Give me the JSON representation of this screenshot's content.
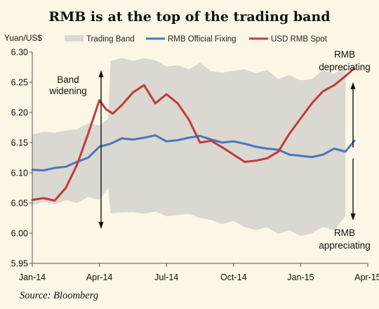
{
  "chart_data": {
    "type": "line",
    "title": "RMB is at the top of the trading band",
    "ylabel": "Yuan/US$",
    "ylim": [
      5.95,
      6.3
    ],
    "yticks": [
      "6.30",
      "6.25",
      "6.20",
      "6.15",
      "6.10",
      "6.05",
      "6.00",
      "5.95"
    ],
    "xticks": [
      "Jan-14",
      "Apr-14",
      "Jul-14",
      "Oct-14",
      "Jan-15",
      "Apr-15"
    ],
    "xlim": [
      0,
      15
    ],
    "legend": [
      "Trading Band",
      "RMB Official Fixing",
      "USD RMB Spot"
    ],
    "legend_position": "top",
    "grid": false,
    "source": "Source: Bloomberg",
    "annotations": {
      "band": [
        "Band",
        "widening"
      ],
      "top": [
        "RMB",
        "depreciating"
      ],
      "bottom": [
        "RMB",
        "appreciating"
      ]
    },
    "colors": {
      "band": "#dbd7d1",
      "fixing": "#4a77bb",
      "spot": "#c23b3b",
      "background": "#fbf6e6"
    },
    "series": [
      {
        "name": "Trading Band",
        "kind": "band",
        "x": [
          0,
          0.5,
          1,
          1.5,
          2,
          2.5,
          3,
          3.4,
          3.5,
          4,
          4.5,
          5,
          5.5,
          6,
          6.5,
          7,
          7.5,
          8,
          8.5,
          9,
          9.5,
          10,
          10.5,
          11,
          11.5,
          12,
          12.5,
          13,
          13.5,
          14
        ],
        "upper": [
          6.163,
          6.168,
          6.166,
          6.17,
          6.172,
          6.182,
          6.178,
          6.19,
          6.285,
          6.29,
          6.285,
          6.29,
          6.286,
          6.276,
          6.278,
          6.271,
          6.282,
          6.268,
          6.266,
          6.269,
          6.271,
          6.265,
          6.27,
          6.255,
          6.262,
          6.253,
          6.255,
          6.27,
          6.263,
          6.28
        ],
        "lower": [
          6.046,
          6.052,
          6.048,
          6.055,
          6.05,
          6.06,
          6.055,
          6.075,
          6.033,
          6.034,
          6.035,
          6.032,
          6.036,
          6.028,
          6.03,
          6.032,
          6.025,
          6.022,
          6.015,
          6.02,
          6.01,
          6.005,
          6.01,
          5.999,
          6.005,
          5.995,
          6.0,
          6.01,
          6.005,
          6.028
        ]
      },
      {
        "name": "RMB Official Fixing",
        "x": [
          0,
          0.5,
          1,
          1.5,
          2,
          2.5,
          3,
          3.5,
          4,
          4.5,
          5,
          5.5,
          6,
          6.5,
          7,
          7.5,
          8,
          8.5,
          9,
          9.5,
          10,
          10.5,
          11,
          11.5,
          12,
          12.5,
          13,
          13.5,
          14,
          14.4
        ],
        "values": [
          6.105,
          6.104,
          6.108,
          6.11,
          6.118,
          6.125,
          6.143,
          6.148,
          6.157,
          6.155,
          6.158,
          6.162,
          6.152,
          6.154,
          6.158,
          6.161,
          6.155,
          6.15,
          6.152,
          6.148,
          6.143,
          6.14,
          6.138,
          6.13,
          6.128,
          6.126,
          6.13,
          6.14,
          6.135,
          6.153
        ]
      },
      {
        "name": "USD RMB Spot",
        "x": [
          0,
          0.5,
          1,
          1.5,
          2,
          2.5,
          3,
          3.3,
          3.6,
          4,
          4.5,
          5,
          5.5,
          6,
          6.5,
          7,
          7.5,
          8,
          8.5,
          9,
          9.5,
          10,
          10.5,
          11,
          11.5,
          12,
          12.5,
          13,
          13.5,
          14,
          14.4
        ],
        "values": [
          6.055,
          6.058,
          6.054,
          6.075,
          6.113,
          6.165,
          6.22,
          6.205,
          6.198,
          6.212,
          6.233,
          6.245,
          6.215,
          6.23,
          6.215,
          6.188,
          6.15,
          6.153,
          6.142,
          6.13,
          6.118,
          6.12,
          6.124,
          6.135,
          6.165,
          6.19,
          6.215,
          6.235,
          6.245,
          6.26,
          6.273
        ]
      }
    ]
  }
}
